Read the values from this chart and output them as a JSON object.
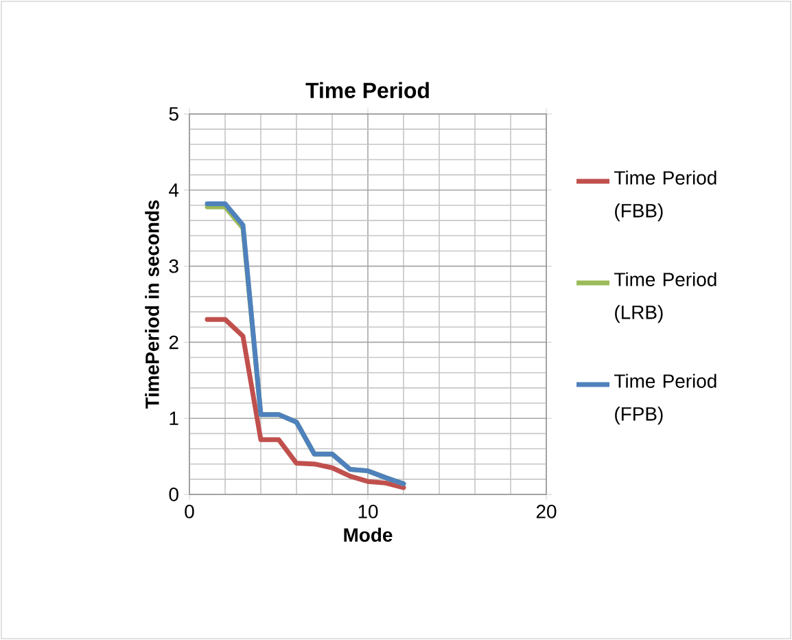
{
  "chart_data": {
    "type": "line",
    "title": "Time Period",
    "xlabel": "Mode",
    "ylabel": "TimePeriod in seconds",
    "x": [
      1,
      2,
      3,
      4,
      5,
      6,
      7,
      8,
      9,
      10,
      11,
      12
    ],
    "series": [
      {
        "name": "Time Period (FBB)",
        "color": "#c0504d",
        "values": [
          2.3,
          2.3,
          2.08,
          0.72,
          0.72,
          0.41,
          0.4,
          0.35,
          0.24,
          0.17,
          0.15,
          0.09
        ]
      },
      {
        "name": "Time Period (LRB)",
        "color": "#9bbb59",
        "values": [
          3.78,
          3.78,
          3.5,
          1.05,
          1.05,
          0.95,
          0.53,
          0.53,
          0.33,
          0.31,
          0.22,
          0.14
        ]
      },
      {
        "name": "Time Period (FPB)",
        "color": "#4f81bd",
        "values": [
          3.82,
          3.82,
          3.54,
          1.05,
          1.05,
          0.95,
          0.53,
          0.53,
          0.33,
          0.31,
          0.22,
          0.14
        ]
      }
    ],
    "xlim": [
      0,
      20
    ],
    "ylim": [
      0,
      5
    ],
    "xticks": [
      0,
      10,
      20
    ],
    "yticks": [
      0,
      1,
      2,
      3,
      4,
      5
    ],
    "grid": true,
    "legend": "right",
    "marker": "none",
    "line_style": "solid"
  }
}
